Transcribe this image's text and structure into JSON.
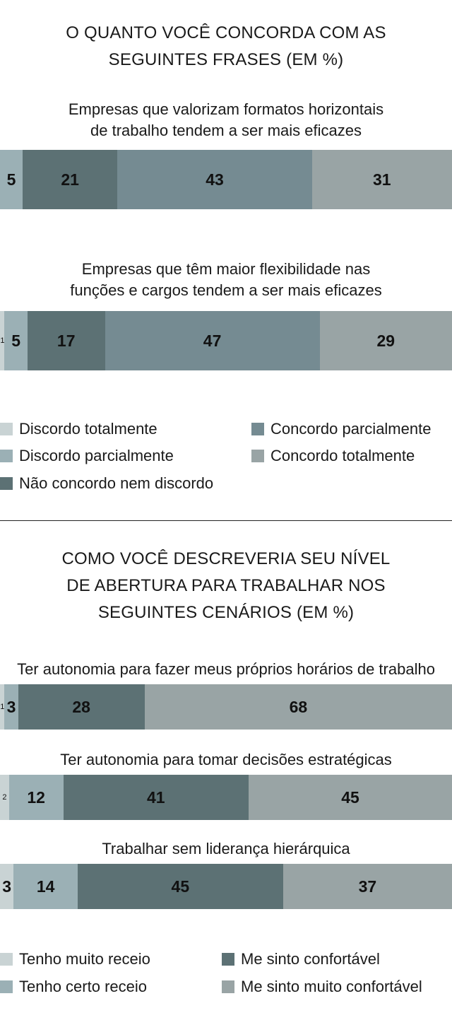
{
  "colors": {
    "c1": "#c9d3d4",
    "c2": "#9bb0b5",
    "c3": "#5c7174",
    "c4": "#758b92",
    "c5": "#99a4a5"
  },
  "section1": {
    "title_lines": [
      "O QUANTO VOCÊ CONCORDA COM AS",
      "SEGUINTES FRASES (EM %)"
    ],
    "legend": [
      "Discordo totalmente",
      "Discordo parcialmente",
      "Não concordo nem discordo",
      "Concordo parcialmente",
      "Concordo totalmente"
    ]
  },
  "section2": {
    "title_lines": [
      "COMO VOCÊ DESCREVERIA SEU NÍVEL",
      "DE ABERTURA PARA TRABALHAR NOS",
      "SEGUINTES CENÁRIOS (EM %)"
    ],
    "legend": [
      "Tenho muito receio",
      "Tenho certo receio",
      "Me sinto confortável",
      "Me sinto muito confortável"
    ]
  },
  "chart_data": [
    {
      "type": "bar",
      "orientation": "horizontal-stacked",
      "title": "O QUANTO VOCÊ CONCORDA COM AS SEGUINTES FRASES (EM %)",
      "series_names": [
        "Discordo totalmente",
        "Discordo parcialmente",
        "Não concordo nem discordo",
        "Concordo parcialmente",
        "Concordo totalmente"
      ],
      "categories": [
        [
          "Empresas que valorizam formatos horizontais",
          "de trabalho tendem a ser mais eficazes"
        ],
        [
          "Empresas que têm maior flexibilidade nas",
          "funções e cargos tendem a ser mais eficazes"
        ]
      ],
      "values": [
        [
          0,
          5,
          21,
          43,
          31
        ],
        [
          1,
          5,
          17,
          47,
          29
        ]
      ],
      "labels": [
        [
          "",
          "5",
          "21",
          "43",
          "31"
        ],
        [
          "1",
          "5",
          "17",
          "47",
          "29"
        ]
      ],
      "color_keys": [
        "c1",
        "c2",
        "c3",
        "c4",
        "c5"
      ]
    },
    {
      "type": "bar",
      "orientation": "horizontal-stacked",
      "title": "COMO VOCÊ DESCREVERIA SEU NÍVEL DE ABERTURA PARA TRABALHAR NOS SEGUINTES CENÁRIOS (EM %)",
      "series_names": [
        "Tenho muito receio",
        "Tenho certo receio",
        "Me sinto confortável",
        "Me sinto muito confortável"
      ],
      "categories": [
        [
          "Ter autonomia para fazer meus próprios horários de trabalho"
        ],
        [
          "Ter autonomia para tomar decisões estratégicas"
        ],
        [
          "Trabalhar sem liderança hierárquica"
        ]
      ],
      "values": [
        [
          1,
          3,
          28,
          68
        ],
        [
          2,
          12,
          41,
          45
        ],
        [
          3,
          14,
          45,
          37
        ]
      ],
      "labels": [
        [
          "1",
          "3",
          "28",
          "68"
        ],
        [
          "2",
          "12",
          "41",
          "45"
        ],
        [
          "3",
          "14",
          "45",
          "37"
        ]
      ],
      "color_keys": [
        "c1",
        "c2",
        "c3",
        "c5"
      ]
    }
  ]
}
